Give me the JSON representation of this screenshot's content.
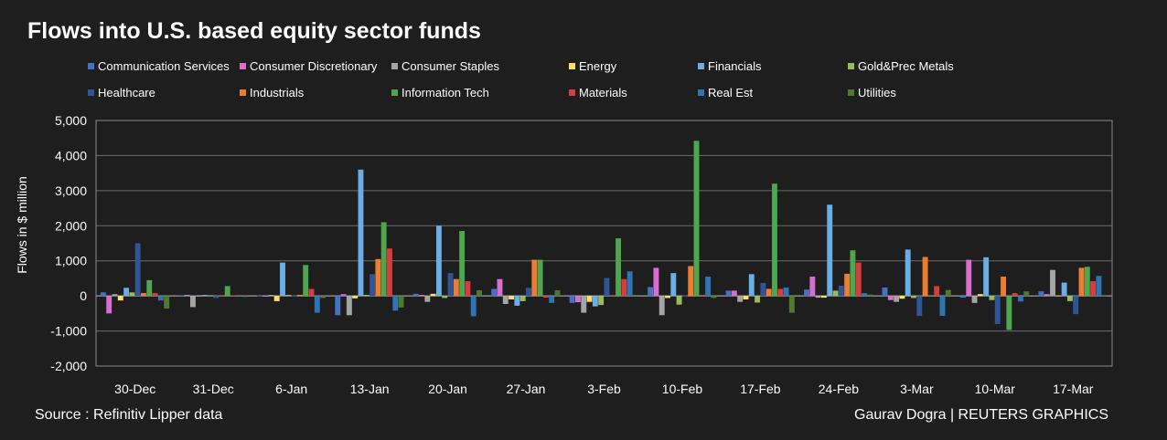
{
  "header": {
    "title": "Flows into U.S. based equity sector funds"
  },
  "footer": {
    "source": "Source : Refinitiv Lipper data",
    "credit": "Gaurav Dogra | REUTERS GRAPHICS"
  },
  "chart_data": {
    "type": "bar",
    "title": "Flows into U.S. based equity sector funds",
    "ylabel": "Flows in $ million",
    "xlabel": "",
    "ylim": [
      -2000,
      5000
    ],
    "yticks": [
      -2000,
      -1000,
      0,
      1000,
      2000,
      3000,
      4000,
      5000
    ],
    "ytick_labels": [
      "-2,000",
      "-1,000",
      "0",
      "1,000",
      "2,000",
      "3,000",
      "4,000",
      "5,000"
    ],
    "grid": true,
    "legend_position": "top",
    "categories": [
      "30-Dec",
      "31-Dec",
      "6-Jan",
      "13-Jan",
      "20-Jan",
      "27-Jan",
      "3-Feb",
      "10-Feb",
      "17-Feb",
      "24-Feb",
      "3-Mar",
      "10-Mar",
      "17-Mar"
    ],
    "series": [
      {
        "name": "Communication Services",
        "color": "#4472c4",
        "values": [
          100,
          20,
          10,
          -550,
          60,
          200,
          -200,
          250,
          150,
          180,
          240,
          -50,
          130
        ]
      },
      {
        "name": "Consumer Discretionary",
        "color": "#d86ed0",
        "values": [
          -500,
          30,
          -20,
          50,
          30,
          480,
          -180,
          800,
          150,
          550,
          -120,
          1030,
          50
        ]
      },
      {
        "name": "Consumer Staples",
        "color": "#a5a5a5",
        "values": [
          50,
          -320,
          30,
          -550,
          -170,
          -230,
          -480,
          -550,
          -170,
          -50,
          -170,
          -200,
          740
        ]
      },
      {
        "name": "Energy",
        "color": "#ffe066",
        "values": [
          -130,
          10,
          -150,
          -70,
          60,
          -100,
          -170,
          -60,
          -100,
          -50,
          -80,
          50,
          10
        ]
      },
      {
        "name": "Financials",
        "color": "#6aaee8",
        "values": [
          230,
          30,
          950,
          3600,
          2000,
          -280,
          -300,
          650,
          620,
          2600,
          1320,
          1100,
          380
        ]
      },
      {
        "name": "Gold&Prec Metals",
        "color": "#9bbb59",
        "values": [
          100,
          20,
          30,
          30,
          -60,
          -150,
          -260,
          -250,
          -190,
          150,
          -60,
          -120,
          -150
        ]
      },
      {
        "name": "Healthcare",
        "color": "#2f5597",
        "values": [
          1500,
          -60,
          10,
          620,
          650,
          230,
          510,
          10,
          370,
          290,
          -570,
          -800,
          -520
        ]
      },
      {
        "name": "Industrials",
        "color": "#ed7d31",
        "values": [
          80,
          10,
          30,
          1050,
          480,
          1030,
          10,
          850,
          200,
          630,
          1110,
          550,
          800
        ]
      },
      {
        "name": "Information Tech",
        "color": "#4ea64e",
        "values": [
          450,
          280,
          880,
          2100,
          1850,
          1030,
          1640,
          4420,
          3200,
          1300,
          20,
          -970,
          830
        ]
      },
      {
        "name": "Materials",
        "color": "#d93c3c",
        "values": [
          80,
          20,
          200,
          1350,
          420,
          -50,
          480,
          30,
          200,
          950,
          280,
          80,
          420
        ]
      },
      {
        "name": "Real Est",
        "color": "#2e75b6",
        "values": [
          -130,
          -10,
          -480,
          -420,
          -580,
          -200,
          700,
          550,
          240,
          80,
          -570,
          -160,
          570
        ]
      },
      {
        "name": "Utilities",
        "color": "#4e7a30",
        "values": [
          -360,
          -30,
          -60,
          -330,
          160,
          160,
          30,
          -60,
          -480,
          40,
          170,
          130,
          -20
        ]
      }
    ]
  }
}
